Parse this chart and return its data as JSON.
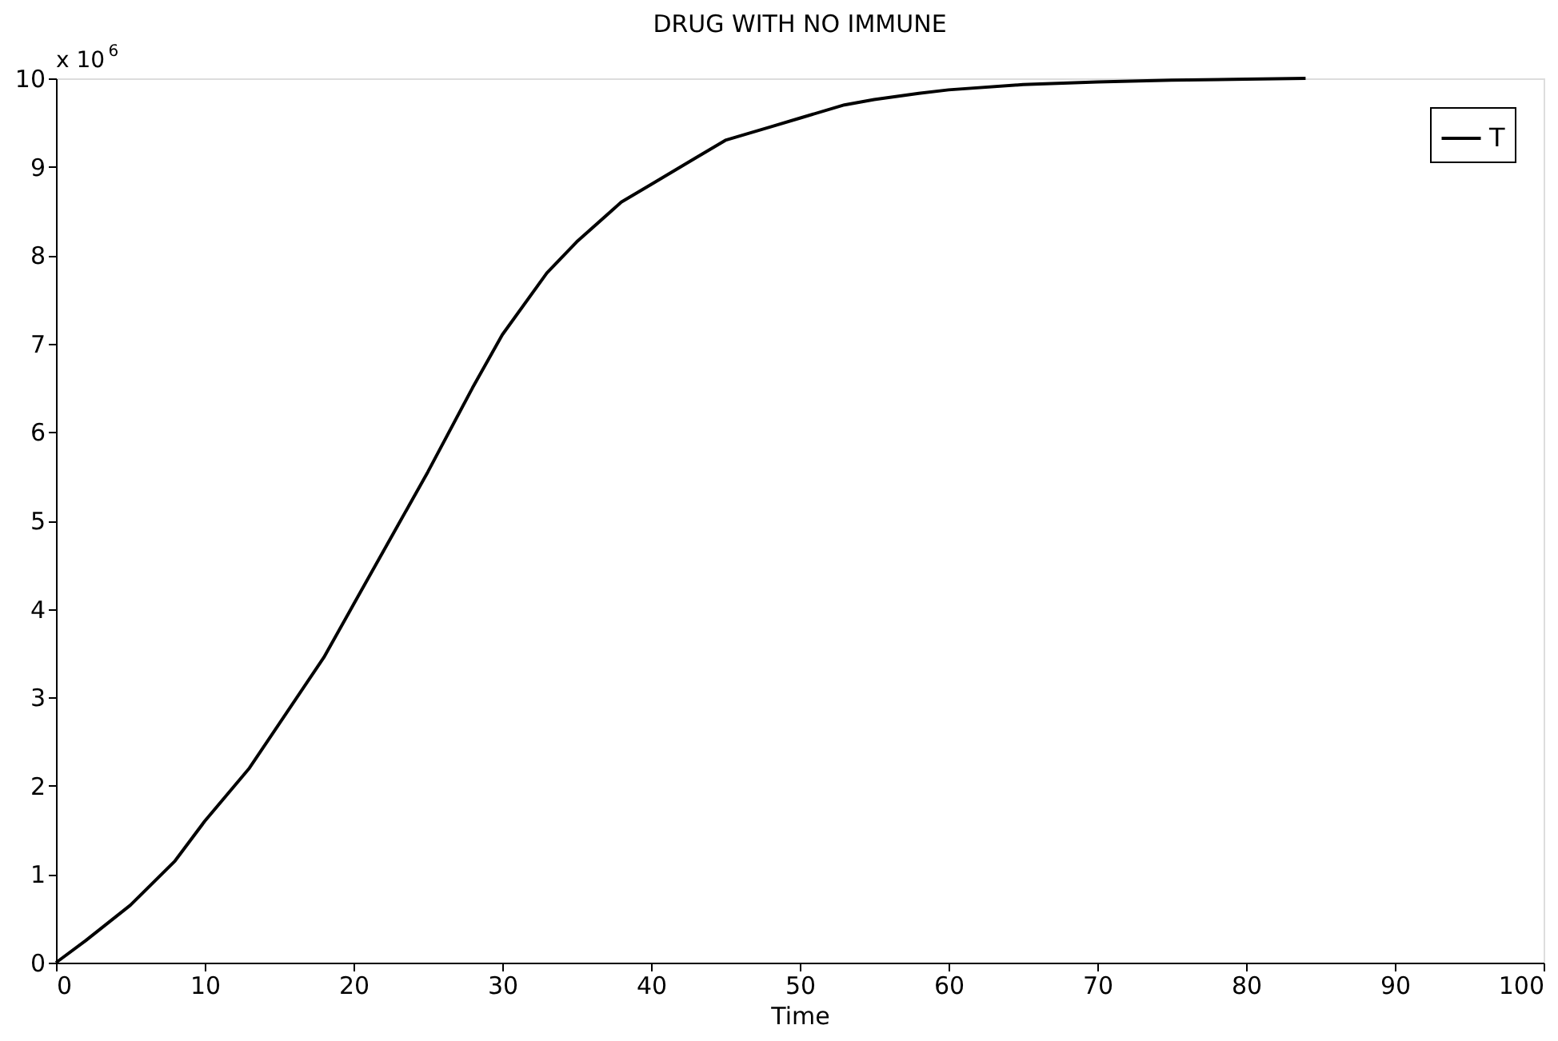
{
  "chart_data": {
    "type": "line",
    "title": "DRUG WITH NO IMMUNE",
    "xlabel": "Time",
    "annotations": [
      "x 10$^{6}$"
    ],
    "xlim": [
      0,
      100
    ],
    "xticks": [
      0,
      10,
      20,
      30,
      40,
      50,
      60,
      70,
      80,
      90,
      100
    ],
    "ylim": [
      0,
      10
    ],
    "yticks": [
      0,
      1,
      2,
      3,
      4,
      5,
      6,
      7,
      8,
      9,
      10
    ],
    "grid": false,
    "legend": "top right",
    "marker": "none",
    "line_style": "solid",
    "series": [
      {
        "name": "T",
        "color": "#000000",
        "x": [
          0,
          2,
          5,
          8,
          10,
          13,
          15,
          18,
          20,
          23,
          25,
          28,
          30,
          33,
          35,
          38,
          40,
          43,
          45,
          48,
          50,
          53,
          55,
          58,
          60,
          65,
          70,
          75,
          80,
          84
        ],
        "values": [
          0,
          0.25,
          0.65,
          1.15,
          1.6,
          2.2,
          2.7,
          3.45,
          4.05,
          4.95,
          5.55,
          6.5,
          7.1,
          7.8,
          8.15,
          8.6,
          8.8,
          9.1,
          9.3,
          9.45,
          9.55,
          9.7,
          9.76,
          9.83,
          9.87,
          9.93,
          9.96,
          9.98,
          9.99,
          10.0
        ]
      }
    ]
  }
}
